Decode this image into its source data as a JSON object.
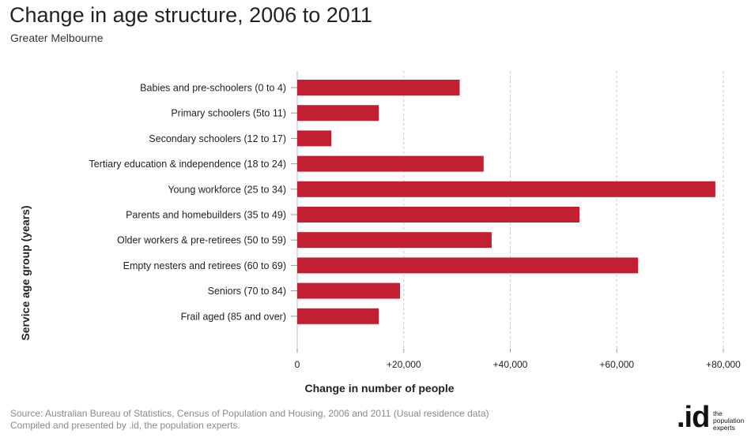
{
  "header": {
    "title": "Change in age structure, 2006 to 2011",
    "subtitle": "Greater Melbourne"
  },
  "chart_data": {
    "type": "bar",
    "orientation": "horizontal",
    "categories": [
      "Babies and pre-schoolers (0 to 4)",
      "Primary schoolers (5to 11)",
      "Secondary schoolers (12 to 17)",
      "Tertiary education & independence (18 to 24)",
      "Young workforce (25 to 34)",
      "Parents and homebuilders (35 to 49)",
      "Older workers & pre-retirees (50 to 59)",
      "Empty nesters and retirees (60 to 69)",
      "Seniors (70 to 84)",
      "Frail aged (85 and over)"
    ],
    "values": [
      30500,
      15300,
      6400,
      35000,
      78500,
      53000,
      36500,
      64000,
      19300,
      15300
    ],
    "xlabel": "Change in number of people",
    "ylabel": "Service age group (years)",
    "xlim": [
      0,
      80000
    ],
    "xticks": [
      0,
      20000,
      40000,
      60000,
      80000
    ],
    "xtick_labels": [
      "0",
      "+20,000",
      "+40,000",
      "+60,000",
      "+80,000"
    ],
    "bar_color": "#c21f32",
    "grid": "vertical dashed"
  },
  "footer": {
    "source_line1": "Source: Australian Bureau of Statistics, Census of Population and Housing, 2006 and 2011 (Usual residence data)",
    "source_line2": "Compiled and presented by .id, the population experts.",
    "logo_mark": ".id",
    "logo_tag1": "the",
    "logo_tag2": "population",
    "logo_tag3": "experts"
  }
}
